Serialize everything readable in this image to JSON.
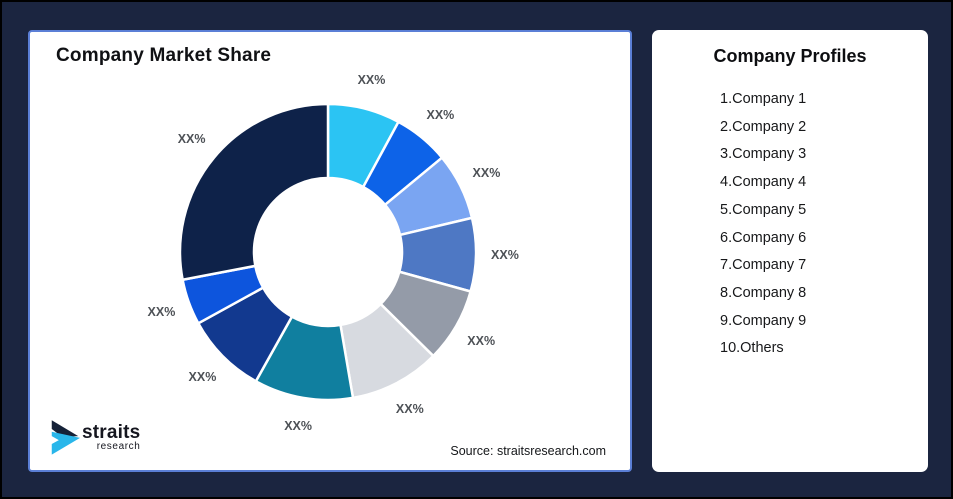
{
  "page": {
    "background_color": "#1b2540"
  },
  "market_share_card": {
    "title": "Company Market Share",
    "source_text": "Source: straitsresearch.com",
    "logo": {
      "brand": "straits",
      "brand_sub": "research",
      "navy": "#152238",
      "cyan": "#29b6ea"
    }
  },
  "company_profiles_card": {
    "title": "Company Profiles",
    "items": [
      "1.Company 1",
      "2.Company 2",
      "3.Company 3",
      "4.Company 4",
      "5.Company 5",
      "6.Company 6",
      "7.Company 7",
      "8.Company 8",
      "9.Company 9",
      "10.Others"
    ]
  },
  "chart_data": {
    "type": "pie",
    "subtype": "donut",
    "title": "Company Market Share",
    "start_angle_deg": 0,
    "direction": "clockwise",
    "inner_radius_ratio": 0.5,
    "gap_color": "#ffffff",
    "legend": "none",
    "label_text_all": "XX%",
    "segments": [
      {
        "label": "XX%",
        "value_pct": 7.9,
        "color": "#2bc4f3"
      },
      {
        "label": "XX%",
        "value_pct": 6.1,
        "color": "#0d63e8"
      },
      {
        "label": "XX%",
        "value_pct": 7.3,
        "color": "#7aa5f2"
      },
      {
        "label": "XX%",
        "value_pct": 8.0,
        "color": "#4e78c4"
      },
      {
        "label": "XX%",
        "value_pct": 8.1,
        "color": "#949ba8"
      },
      {
        "label": "XX%",
        "value_pct": 9.9,
        "color": "#d7dae0"
      },
      {
        "label": "XX%",
        "value_pct": 10.8,
        "color": "#107f9f"
      },
      {
        "label": "XX%",
        "value_pct": 8.9,
        "color": "#12398f"
      },
      {
        "label": "XX%",
        "value_pct": 5.0,
        "color": "#0d55dd"
      },
      {
        "label": "XX%",
        "value_pct": 28.0,
        "color": "#0e2249"
      }
    ]
  }
}
